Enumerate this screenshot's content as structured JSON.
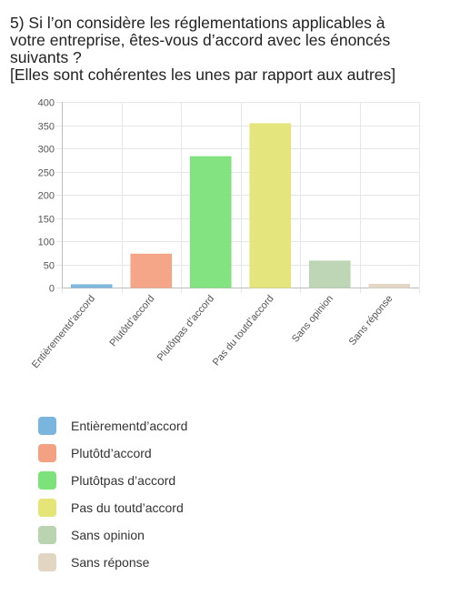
{
  "question": {
    "lines": [
      "5) Si l’on considère les réglementations applicables à",
      "votre entreprise, êtes-vous d’accord avec les énoncés",
      "suivants ?",
      "[Elles sont cohérentes les unes par rapport aux autres]"
    ]
  },
  "chart_data": {
    "type": "bar",
    "categories": [
      "Entièrementd’accord",
      "Plutôtd’accord",
      "Plutôtpas d’accord",
      "Pas du toutd’accord",
      "Sans opinion",
      "Sans réponse"
    ],
    "values": [
      6,
      72,
      282,
      353,
      57,
      7
    ],
    "colors": [
      "#7ab5de",
      "#f4a183",
      "#7de27a",
      "#e4e477",
      "#bad4b2",
      "#e2d6c2"
    ],
    "yticks": [
      "0",
      "50",
      "100",
      "150",
      "200",
      "250",
      "300",
      "350",
      "400"
    ],
    "ylim": [
      0,
      400
    ],
    "grid": true,
    "legend_position": "bottom-left"
  }
}
